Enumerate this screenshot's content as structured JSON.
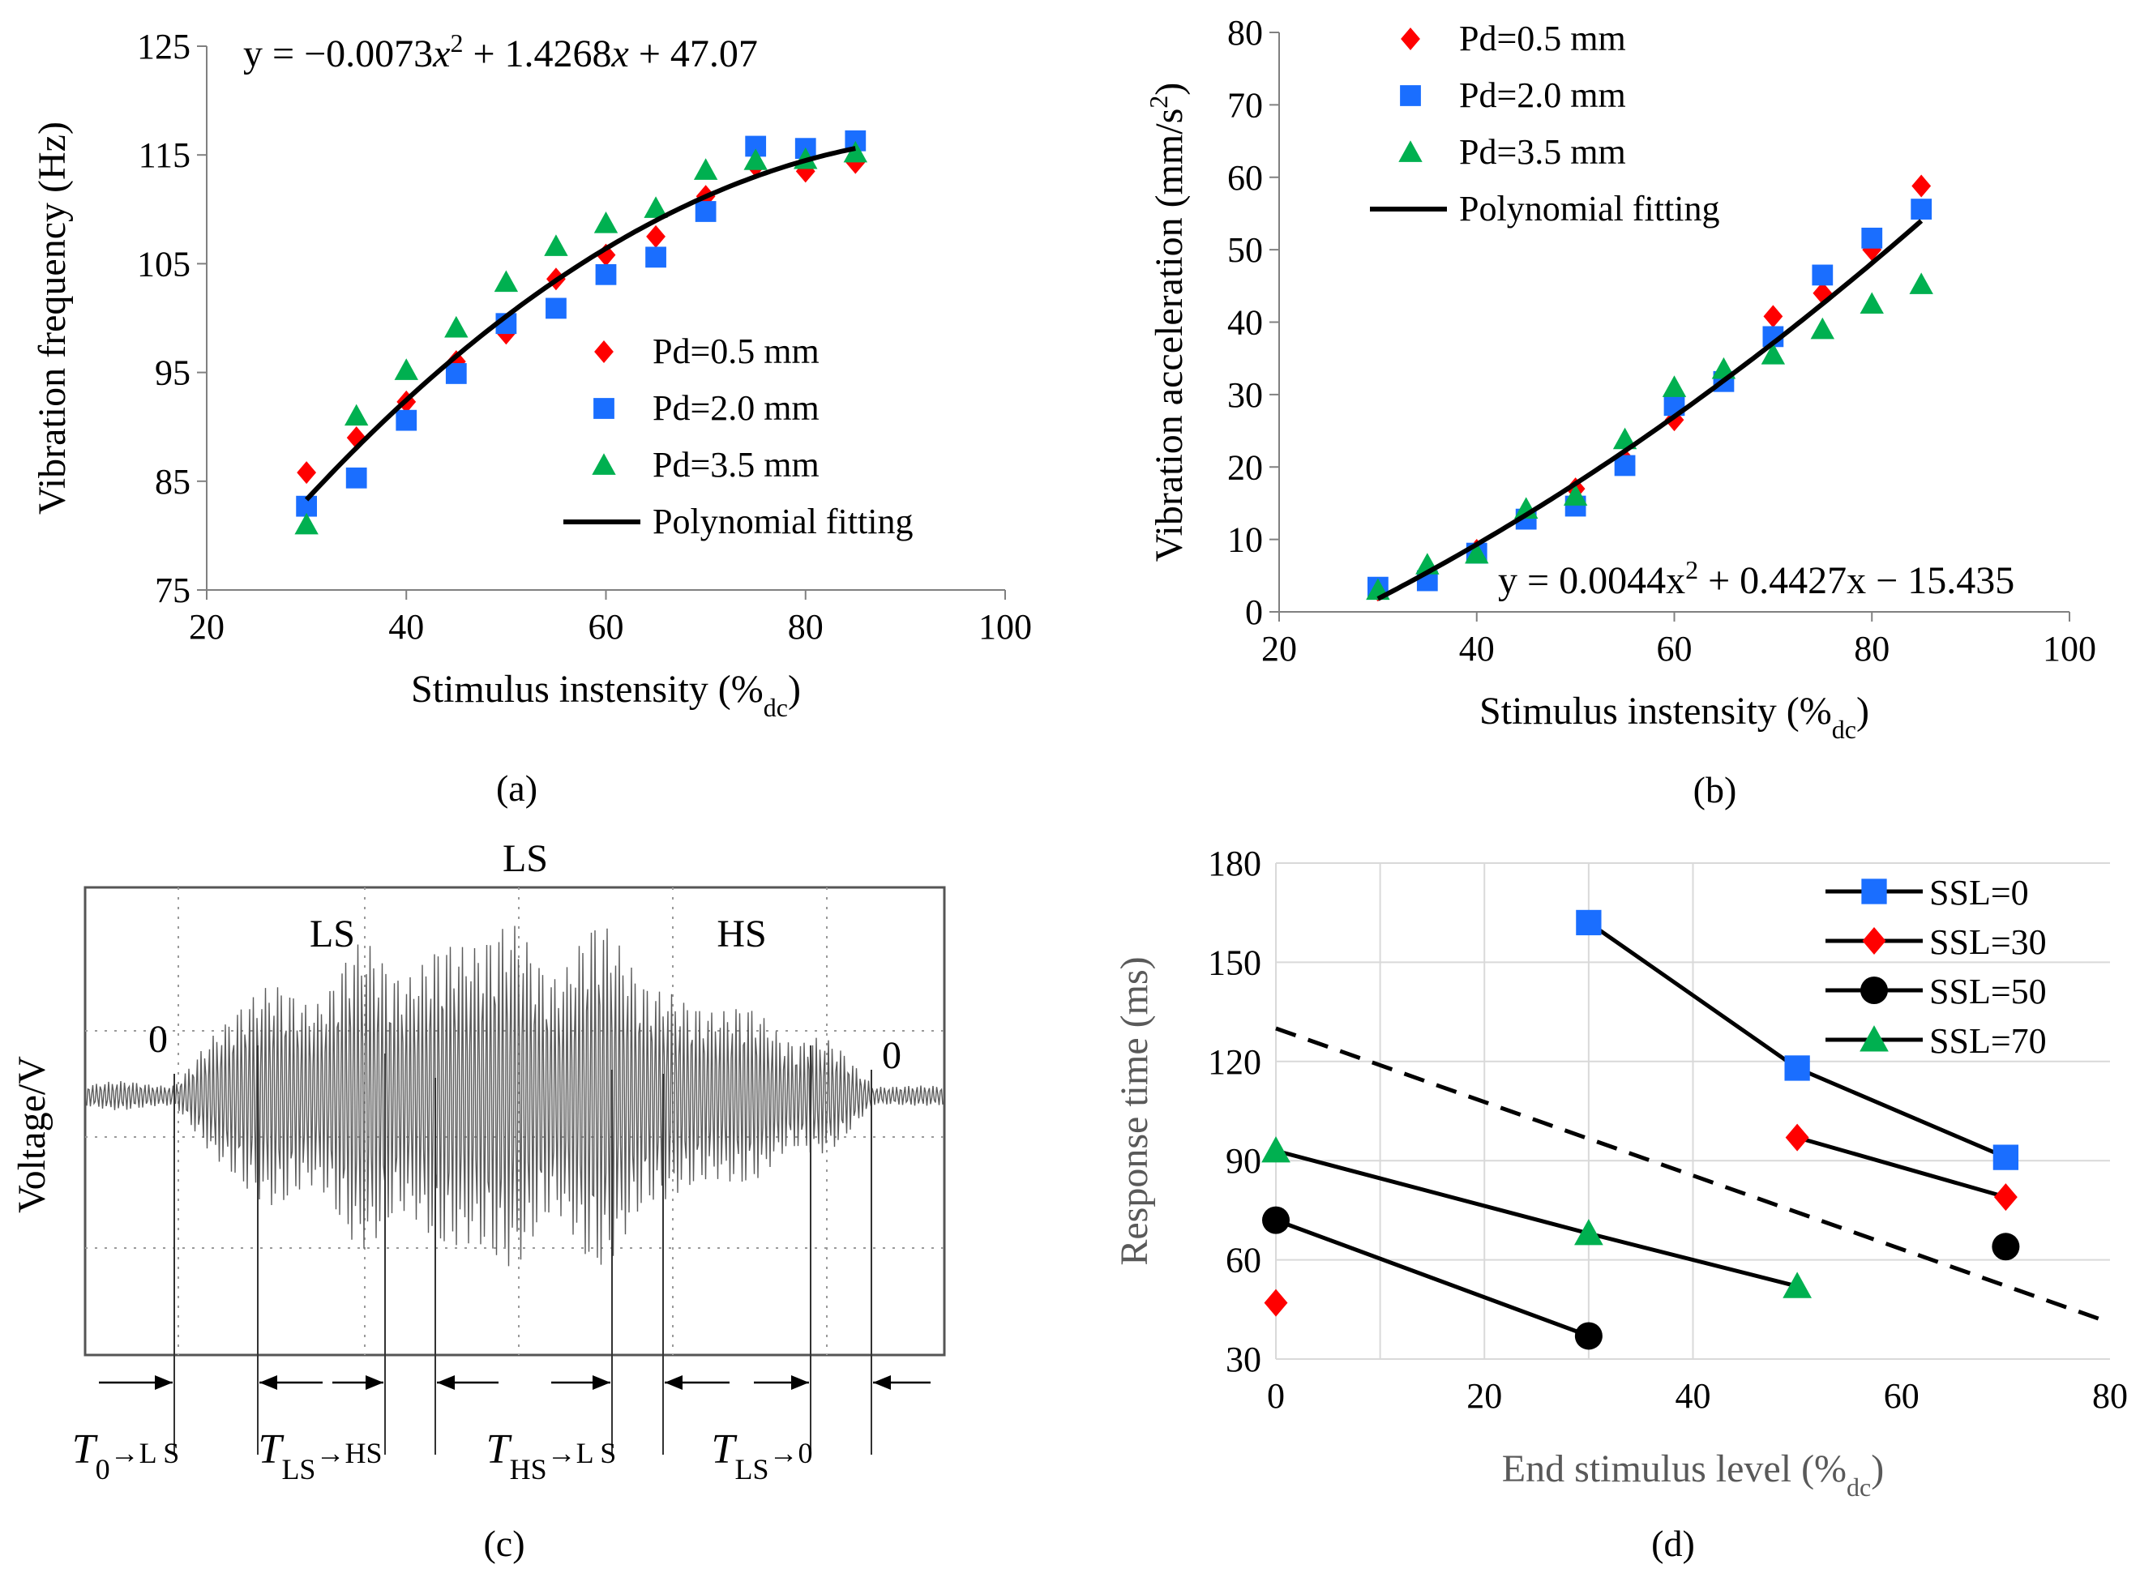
{
  "chart_data": [
    {
      "id": "a",
      "type": "scatter",
      "caption": "(a)",
      "equation": {
        "prefix": "y = −0.0073",
        "x1": "x",
        "sup": "2",
        "mid": " + 1.4268",
        "x2": "x",
        "suffix": " + 47.07"
      },
      "xlabel": "Stimulus instensity (%",
      "xlabel_sub": "dc",
      "xlabel_end": ")",
      "ylabel": "Vibration frequency (Hz)",
      "xlim": [
        20,
        100
      ],
      "ylim": [
        75,
        125
      ],
      "xticks": [
        "20",
        "40",
        "60",
        "80",
        "100"
      ],
      "yticks": [
        "75",
        "85",
        "95",
        "105",
        "115",
        "125"
      ],
      "x": [
        30,
        35,
        40,
        45,
        50,
        55,
        60,
        65,
        70,
        75,
        80,
        85
      ],
      "series": [
        {
          "name": "Pd=0.5 mm",
          "marker": "diamond",
          "color": "#ff0000",
          "values": [
            85.8,
            89.0,
            92.3,
            96.0,
            98.6,
            103.6,
            105.8,
            107.5,
            111.2,
            114.0,
            113.5,
            114.3
          ]
        },
        {
          "name": "Pd=2.0 mm",
          "marker": "square",
          "color": "#1a6eff",
          "values": [
            82.7,
            85.3,
            90.6,
            94.9,
            99.5,
            100.9,
            104.0,
            105.6,
            109.8,
            115.8,
            115.6,
            116.3
          ]
        },
        {
          "name": "Pd=3.5 mm",
          "marker": "triangle",
          "color": "#00b050",
          "values": [
            81.0,
            91.0,
            95.2,
            99.1,
            103.3,
            106.6,
            108.7,
            110.1,
            113.6,
            114.5,
            114.6,
            115.2
          ]
        }
      ],
      "fit": {
        "name": "Polynomial fitting",
        "a": -0.0073,
        "b": 1.4268,
        "c": 47.07,
        "xmin": 30,
        "xmax": 85
      }
    },
    {
      "id": "b",
      "type": "scatter",
      "caption": "(b)",
      "equation": {
        "prefix": "y = 0.0044x",
        "sup": "2",
        "suffix": " + 0.4427x − 15.435"
      },
      "xlabel": "Stimulus instensity (%",
      "xlabel_sub": "dc",
      "xlabel_end": ")",
      "ylabel": "Vibration acceleration (mm/s",
      "ylabel_sup": "2",
      "ylabel_end": ")",
      "xlim": [
        20,
        100
      ],
      "ylim": [
        0,
        80
      ],
      "xticks": [
        "20",
        "40",
        "60",
        "80",
        "100"
      ],
      "yticks": [
        "0",
        "10",
        "20",
        "30",
        "40",
        "50",
        "60",
        "70",
        "80"
      ],
      "x": [
        30,
        35,
        40,
        45,
        50,
        55,
        60,
        65,
        70,
        75,
        80,
        85
      ],
      "series": [
        {
          "name": "Pd=0.5 mm",
          "marker": "diamond",
          "color": "#ff0000",
          "values": [
            3.0,
            4.5,
            8.5,
            13.0,
            17.0,
            21.0,
            26.5,
            32.0,
            40.8,
            44.0,
            50.0,
            58.8
          ]
        },
        {
          "name": "Pd=2.0 mm",
          "marker": "square",
          "color": "#1a6eff",
          "values": [
            3.4,
            4.3,
            8.1,
            12.8,
            14.6,
            20.2,
            28.5,
            31.8,
            38.0,
            46.5,
            51.6,
            55.6
          ]
        },
        {
          "name": "Pd=3.5 mm",
          "marker": "triangle",
          "color": "#00b050",
          "values": [
            3.0,
            6.5,
            8.0,
            14.2,
            16.0,
            23.8,
            31.0,
            33.5,
            35.5,
            39.0,
            42.5,
            45.2
          ]
        }
      ],
      "fit": {
        "name": "Polynomial fitting",
        "a": 0.0044,
        "b": 0.4427,
        "c": -15.435,
        "xmin": 30,
        "xmax": 85
      }
    },
    {
      "id": "c",
      "type": "line",
      "caption": "(c)",
      "ylabel": "Voltage/V",
      "title": "LS",
      "segment_labels": [
        "0",
        "LS",
        "HS",
        "0"
      ],
      "transitions": [
        {
          "T": "T",
          "from": "0",
          "to": "L S"
        },
        {
          "T": "T",
          "from": "LS",
          "to": "HS"
        },
        {
          "T": "T",
          "from": "HS",
          "to": "L S"
        },
        {
          "T": "T",
          "from": "LS",
          "to": "0"
        }
      ],
      "arrow": "→"
    },
    {
      "id": "d",
      "type": "line",
      "caption": "(d)",
      "xlabel": "End stimulus level (%",
      "xlabel_sub": "dc",
      "xlabel_end": ")",
      "ylabel": "Response time (ms)",
      "xlim": [
        0,
        80
      ],
      "ylim": [
        30,
        180
      ],
      "xticks": [
        "0",
        "20",
        "40",
        "60",
        "80"
      ],
      "yticks": [
        "30",
        "60",
        "90",
        "120",
        "150",
        "180"
      ],
      "series": [
        {
          "name": "SSL=0",
          "marker": "square",
          "color": "#1a6eff",
          "points": [
            [
              30,
              162
            ],
            [
              50,
              118
            ],
            [
              70,
              91
            ]
          ],
          "line": [
            [
              30,
              162
            ],
            [
              50,
              118
            ],
            [
              70,
              91
            ]
          ]
        },
        {
          "name": "SSL=30",
          "marker": "diamond",
          "color": "#ff0000",
          "points": [
            [
              0,
              47
            ],
            [
              50,
              97
            ],
            [
              70,
              79
            ]
          ],
          "line": [
            [
              50,
              97
            ],
            [
              70,
              79
            ]
          ]
        },
        {
          "name": "SSL=50",
          "marker": "circle",
          "color": "#000000",
          "points": [
            [
              0,
              72
            ],
            [
              30,
              37
            ],
            [
              70,
              64
            ]
          ],
          "line": [
            [
              0,
              72
            ],
            [
              30,
              37
            ]
          ]
        },
        {
          "name": "SSL=70",
          "marker": "triangle",
          "color": "#00b050",
          "points": [
            [
              0,
              93
            ],
            [
              30,
              68
            ],
            [
              50,
              52
            ]
          ],
          "line": [
            [
              0,
              93
            ],
            [
              30,
              68
            ],
            [
              50,
              52
            ]
          ]
        }
      ],
      "dashed_line": [
        [
          0,
          130
        ],
        [
          80,
          41
        ]
      ]
    }
  ]
}
